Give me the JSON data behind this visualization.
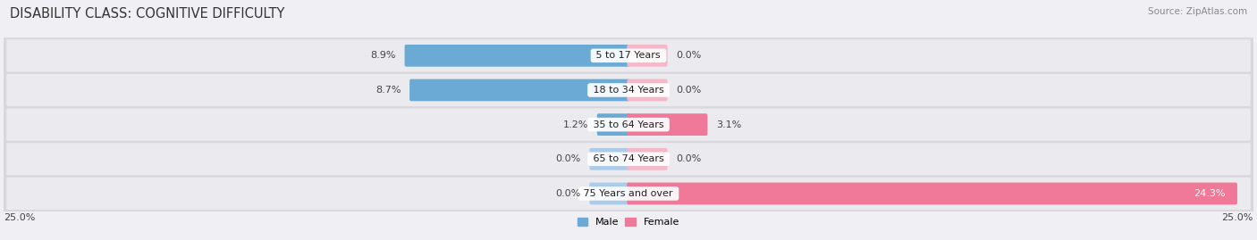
{
  "title": "DISABILITY CLASS: COGNITIVE DIFFICULTY",
  "source": "Source: ZipAtlas.com",
  "categories": [
    "5 to 17 Years",
    "18 to 34 Years",
    "35 to 64 Years",
    "65 to 74 Years",
    "75 Years and over"
  ],
  "male_values": [
    8.9,
    8.7,
    1.2,
    0.0,
    0.0
  ],
  "female_values": [
    0.0,
    0.0,
    3.1,
    0.0,
    24.3
  ],
  "male_bar_color": "#6aaad4",
  "female_bar_color": "#f07898",
  "male_stub_color": "#aacce8",
  "female_stub_color": "#f4b8c8",
  "axis_limit": 25.0,
  "bar_height": 0.52,
  "stub_size": 1.5,
  "row_outer_color": "#d8d8dc",
  "row_inner_color": "#ebebef",
  "label_fontsize": 8.0,
  "title_fontsize": 10.5,
  "value_fontsize": 8.0,
  "source_fontsize": 7.5
}
